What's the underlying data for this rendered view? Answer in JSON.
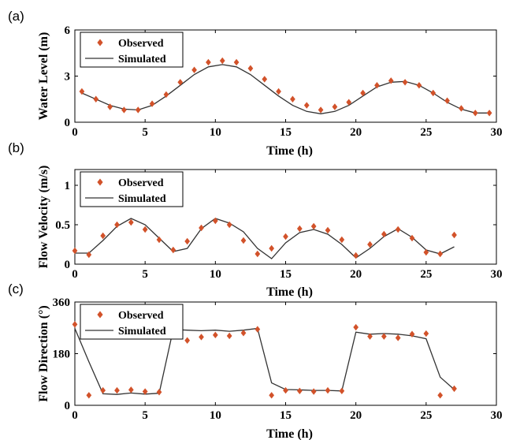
{
  "colors": {
    "observed": "#d2522a",
    "simulated": "#333333"
  },
  "legend": {
    "observed": "Observed",
    "simulated": "Simulated"
  },
  "chart_data": [
    {
      "panel": "(a)",
      "type": "line",
      "xlabel": "Time (h)",
      "ylabel": "Water Level (m)",
      "xlim": [
        0,
        30
      ],
      "ylim": [
        0,
        6
      ],
      "xticks": [
        0,
        5,
        10,
        15,
        20,
        25,
        30
      ],
      "yticks": [
        0,
        3,
        6
      ],
      "legend_position": "top-left",
      "series": [
        {
          "name": "Observed",
          "kind": "scatter",
          "x": [
            0.5,
            1.5,
            2.5,
            3.5,
            4.5,
            5.5,
            6.5,
            7.5,
            8.5,
            9.5,
            10.5,
            11.5,
            12.5,
            13.5,
            14.5,
            15.5,
            16.5,
            17.5,
            18.5,
            19.5,
            20.5,
            21.5,
            22.5,
            23.5,
            24.5,
            25.5,
            26.5,
            27.5,
            28.5,
            29.5
          ],
          "y": [
            2.0,
            1.5,
            1.0,
            0.8,
            0.8,
            1.2,
            1.8,
            2.6,
            3.4,
            3.9,
            4.0,
            3.9,
            3.5,
            2.8,
            2.0,
            1.5,
            1.1,
            0.8,
            1.0,
            1.3,
            1.9,
            2.4,
            2.7,
            2.6,
            2.4,
            1.9,
            1.4,
            0.9,
            0.6,
            0.6
          ]
        },
        {
          "name": "Simulated",
          "kind": "line",
          "x": [
            0.5,
            1.5,
            2.5,
            3.5,
            4.5,
            5.5,
            6.5,
            7.5,
            8.5,
            9.5,
            10.5,
            11.5,
            12.5,
            13.5,
            14.5,
            15.5,
            16.5,
            17.5,
            18.5,
            19.5,
            20.5,
            21.5,
            22.5,
            23.5,
            24.5,
            25.5,
            26.5,
            27.5,
            28.5,
            29.5
          ],
          "y": [
            1.9,
            1.5,
            1.1,
            0.85,
            0.8,
            1.1,
            1.7,
            2.4,
            3.1,
            3.6,
            3.75,
            3.6,
            3.1,
            2.4,
            1.7,
            1.1,
            0.7,
            0.55,
            0.7,
            1.1,
            1.7,
            2.3,
            2.6,
            2.65,
            2.4,
            1.9,
            1.3,
            0.85,
            0.6,
            0.6
          ]
        }
      ]
    },
    {
      "panel": "(b)",
      "type": "line",
      "xlabel": "Time (h)",
      "ylabel": "Flow Velocity (m/s)",
      "xlim": [
        0,
        30
      ],
      "ylim": [
        0,
        1.2
      ],
      "xticks": [
        0,
        5,
        10,
        15,
        20,
        25,
        30
      ],
      "yticks": [
        0,
        0.5,
        1
      ],
      "ytick_labels": [
        "0",
        "0.5",
        "1"
      ],
      "legend_position": "top-left",
      "series": [
        {
          "name": "Observed",
          "kind": "scatter",
          "x": [
            0,
            1,
            2,
            3,
            4,
            5,
            6,
            7,
            8,
            9,
            10,
            11,
            12,
            13,
            14,
            15,
            16,
            17,
            18,
            19,
            20,
            21,
            22,
            23,
            24,
            25,
            26,
            27
          ],
          "y": [
            0.17,
            0.12,
            0.36,
            0.5,
            0.53,
            0.44,
            0.31,
            0.18,
            0.29,
            0.46,
            0.55,
            0.5,
            0.3,
            0.13,
            0.2,
            0.35,
            0.45,
            0.48,
            0.43,
            0.31,
            0.11,
            0.25,
            0.38,
            0.44,
            0.33,
            0.15,
            0.13,
            0.37
          ]
        },
        {
          "name": "Simulated",
          "kind": "line",
          "x": [
            0,
            1,
            2,
            3,
            4,
            5,
            6,
            7,
            8,
            9,
            10,
            11,
            12,
            13,
            14,
            15,
            16,
            17,
            18,
            19,
            20,
            21,
            22,
            23,
            24,
            25,
            26,
            27
          ],
          "y": [
            0.14,
            0.14,
            0.3,
            0.48,
            0.58,
            0.5,
            0.33,
            0.16,
            0.2,
            0.45,
            0.58,
            0.52,
            0.41,
            0.2,
            0.07,
            0.27,
            0.4,
            0.44,
            0.38,
            0.25,
            0.08,
            0.2,
            0.35,
            0.45,
            0.34,
            0.18,
            0.13,
            0.22
          ]
        }
      ]
    },
    {
      "panel": "(c)",
      "type": "line",
      "xlabel": "Time (h)",
      "ylabel": "Flow Direction (°)",
      "xlim": [
        0,
        30
      ],
      "ylim": [
        0,
        360
      ],
      "xticks": [
        0,
        5,
        10,
        15,
        20,
        25,
        30
      ],
      "yticks": [
        0,
        180,
        360
      ],
      "legend_position": "top-left",
      "series": [
        {
          "name": "Observed",
          "kind": "scatter",
          "x": [
            0,
            1,
            2,
            3,
            4,
            5,
            6,
            8,
            9,
            10,
            11,
            12,
            13,
            14,
            15,
            16,
            17,
            18,
            19,
            20,
            21,
            22,
            23,
            24,
            25,
            26,
            27
          ],
          "y": [
            282,
            35,
            52,
            52,
            54,
            48,
            46,
            226,
            238,
            245,
            242,
            252,
            265,
            35,
            52,
            50,
            48,
            52,
            50,
            272,
            240,
            240,
            235,
            248,
            250,
            35,
            58
          ]
        },
        {
          "name": "Simulated",
          "kind": "line",
          "x": [
            0,
            1,
            2,
            3,
            4,
            5,
            6,
            7,
            8,
            9,
            10,
            11,
            12,
            13,
            14,
            15,
            16,
            17,
            18,
            19,
            20,
            21,
            22,
            23,
            24,
            25,
            26,
            27
          ],
          "y": [
            268,
            152,
            40,
            38,
            43,
            39,
            42,
            264,
            262,
            260,
            262,
            258,
            262,
            268,
            78,
            55,
            54,
            52,
            52,
            50,
            255,
            248,
            250,
            248,
            242,
            232,
            98,
            55
          ]
        }
      ]
    }
  ]
}
